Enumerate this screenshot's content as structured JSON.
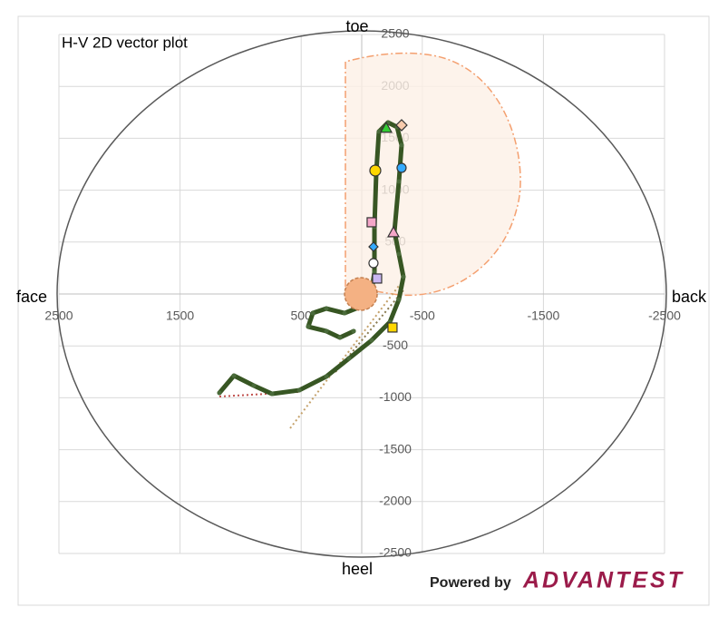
{
  "chart_data": {
    "type": "scatter",
    "title": "H-V 2D vector plot",
    "axis_labels": {
      "top": "toe",
      "bottom": "heel",
      "left": "face",
      "right": "back"
    },
    "xlim": [
      2500,
      -2500
    ],
    "ylim": [
      -2500,
      2500
    ],
    "xticks": [
      2500,
      1500,
      500,
      -500,
      -1500,
      -2500
    ],
    "yticks": [
      2500,
      2000,
      1500,
      1000,
      500,
      -500,
      -1000,
      -1500,
      -2000,
      -2500
    ],
    "grid": true,
    "series": [
      {
        "color": "#375623",
        "x": [
          1175,
          1055,
          891,
          741,
          516,
          292,
          105,
          -82,
          -232,
          -307,
          -344,
          -307,
          -270,
          -307,
          -329,
          -292,
          -217,
          -142,
          -120,
          -105,
          -105,
          -82,
          7,
          142,
          292,
          404,
          442,
          292,
          180,
          67
        ],
        "values": [
          -953,
          -787,
          -883,
          -962,
          -927,
          -795,
          -621,
          -446,
          -271,
          -52,
          166,
          385,
          603,
          1084,
          1434,
          1608,
          1652,
          1565,
          1171,
          647,
          210,
          35,
          -122,
          -184,
          -140,
          -184,
          -315,
          -358,
          -420,
          -358
        ]
      }
    ],
    "guides": [
      {
        "color": "#c0504d",
        "x": [
          1175,
          516
        ],
        "values": [
          -988,
          -944
        ]
      },
      {
        "color": "#c5a26b",
        "x": [
          591,
          -307
        ],
        "values": [
          -1294,
          79
        ]
      },
      {
        "color": "#8a7a50",
        "x": [
          217,
          -344
        ],
        "values": [
          -752,
          35
        ]
      }
    ],
    "markers": [
      {
        "shape": "circle",
        "color": "#f4b183",
        "x": 7,
        "y": 0,
        "size": 18
      },
      {
        "shape": "triangle",
        "color": "#33cc33",
        "x": -202,
        "y": 1600,
        "size": 6
      },
      {
        "shape": "diamond",
        "color": "#f8cbad",
        "x": -329,
        "y": 1626,
        "size": 6
      },
      {
        "shape": "circle",
        "color": "#ffd700",
        "x": -112,
        "y": 1189,
        "size": 6
      },
      {
        "shape": "circle",
        "color": "#33aaff",
        "x": -329,
        "y": 1215,
        "size": 5
      },
      {
        "shape": "square",
        "color": "#f4a6c8",
        "x": -82,
        "y": 691,
        "size": 5
      },
      {
        "shape": "triangle",
        "color": "#f4a6c8",
        "x": -262,
        "y": 594,
        "size": 6
      },
      {
        "shape": "diamond",
        "color": "#33aaff",
        "x": -97,
        "y": 455,
        "size": 5
      },
      {
        "shape": "circle",
        "color": "#ffffff",
        "x": -97,
        "y": 297,
        "size": 5
      },
      {
        "shape": "square",
        "color": "#c9b6f2",
        "x": -127,
        "y": 149,
        "size": 5
      },
      {
        "shape": "square",
        "color": "#ffd700",
        "x": -254,
        "y": -323,
        "size": 5
      }
    ],
    "footer": {
      "prefix": "Powered by",
      "brand": "ADVANTEST"
    }
  }
}
